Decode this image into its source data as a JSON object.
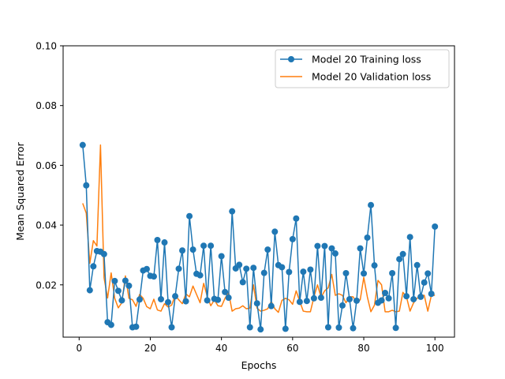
{
  "chart_data": {
    "type": "line",
    "title": "",
    "xlabel": "Epochs",
    "ylabel": "Mean Squared Error",
    "xlim": [
      -4.5,
      105.5
    ],
    "ylim": [
      0.0025,
      0.1
    ],
    "xticks": [
      0,
      20,
      40,
      60,
      80,
      100
    ],
    "xtick_labels": [
      "0",
      "20",
      "40",
      "60",
      "80",
      "100"
    ],
    "yticks": [
      0.02,
      0.04,
      0.06,
      0.08,
      0.1
    ],
    "ytick_labels": [
      "0.02",
      "0.04",
      "0.06",
      "0.08",
      "0.10"
    ],
    "grid": false,
    "legend_position": "top-right",
    "x": [
      1,
      2,
      3,
      4,
      5,
      6,
      7,
      8,
      9,
      10,
      11,
      12,
      13,
      14,
      15,
      16,
      17,
      18,
      19,
      20,
      21,
      22,
      23,
      24,
      25,
      26,
      27,
      28,
      29,
      30,
      31,
      32,
      33,
      34,
      35,
      36,
      37,
      38,
      39,
      40,
      41,
      42,
      43,
      44,
      45,
      46,
      47,
      48,
      49,
      50,
      51,
      52,
      53,
      54,
      55,
      56,
      57,
      58,
      59,
      60,
      61,
      62,
      63,
      64,
      65,
      66,
      67,
      68,
      69,
      70,
      71,
      72,
      73,
      74,
      75,
      76,
      77,
      78,
      79,
      80,
      81,
      82,
      83,
      84,
      85,
      86,
      87,
      88,
      89,
      90,
      91,
      92,
      93,
      94,
      95,
      96,
      97,
      98,
      99,
      100
    ],
    "series": [
      {
        "name": "Model 20 Training loss",
        "color": "#1f77b4",
        "marker": "circle",
        "values": [
          0.0668,
          0.0533,
          0.0182,
          0.0262,
          0.0313,
          0.0311,
          0.0303,
          0.0075,
          0.0066,
          0.0213,
          0.018,
          0.0148,
          0.0214,
          0.0197,
          0.0058,
          0.006,
          0.0151,
          0.0248,
          0.0253,
          0.023,
          0.0228,
          0.035,
          0.0152,
          0.0342,
          0.0142,
          0.0058,
          0.0162,
          0.0254,
          0.0315,
          0.0145,
          0.043,
          0.0318,
          0.0237,
          0.0232,
          0.0331,
          0.0148,
          0.0331,
          0.0153,
          0.015,
          0.0296,
          0.0176,
          0.0157,
          0.0446,
          0.0255,
          0.0267,
          0.0209,
          0.0254,
          0.0058,
          0.0257,
          0.0138,
          0.0051,
          0.024,
          0.0318,
          0.0129,
          0.0378,
          0.0266,
          0.0259,
          0.0053,
          0.0243,
          0.0353,
          0.0422,
          0.0143,
          0.0244,
          0.0146,
          0.0251,
          0.0155,
          0.033,
          0.0157,
          0.033,
          0.0058,
          0.0322,
          0.0305,
          0.0057,
          0.0131,
          0.0239,
          0.0152,
          0.0055,
          0.0147,
          0.0322,
          0.0238,
          0.0358,
          0.0467,
          0.0265,
          0.014,
          0.0148,
          0.0173,
          0.0155,
          0.0239,
          0.0056,
          0.0286,
          0.0303,
          0.0162,
          0.036,
          0.0152,
          0.0266,
          0.016,
          0.0208,
          0.0238,
          0.017,
          0.0395
        ]
      },
      {
        "name": "Model 20 Validation loss",
        "color": "#ff7f0e",
        "marker": "none",
        "values": [
          0.0473,
          0.044,
          0.0272,
          0.0348,
          0.033,
          0.0668,
          0.0224,
          0.0156,
          0.024,
          0.0155,
          0.0123,
          0.014,
          0.023,
          0.0155,
          0.015,
          0.0128,
          0.0168,
          0.0155,
          0.0127,
          0.012,
          0.0152,
          0.0116,
          0.0112,
          0.0137,
          0.0126,
          0.0132,
          0.0165,
          0.015,
          0.0137,
          0.017,
          0.016,
          0.0196,
          0.0168,
          0.014,
          0.0205,
          0.0162,
          0.013,
          0.015,
          0.013,
          0.0128,
          0.0155,
          0.0175,
          0.0112,
          0.012,
          0.0122,
          0.013,
          0.012,
          0.0122,
          0.02,
          0.0122,
          0.0112,
          0.0115,
          0.012,
          0.0145,
          0.012,
          0.0108,
          0.0148,
          0.0155,
          0.015,
          0.0135,
          0.018,
          0.0145,
          0.0112,
          0.011,
          0.011,
          0.016,
          0.02,
          0.0158,
          0.018,
          0.019,
          0.0235,
          0.0165,
          0.017,
          0.0165,
          0.014,
          0.016,
          0.016,
          0.014,
          0.015,
          0.0225,
          0.016,
          0.011,
          0.0132,
          0.0215,
          0.02,
          0.011,
          0.011,
          0.0115,
          0.011,
          0.0112,
          0.0175,
          0.016,
          0.0112,
          0.014,
          0.0155,
          0.0165,
          0.0165,
          0.0112,
          0.0165,
          0.0165
        ]
      }
    ]
  }
}
